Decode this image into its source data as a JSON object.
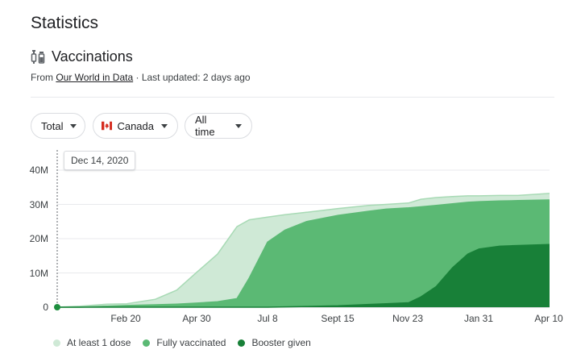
{
  "header": {
    "title": "Statistics",
    "section_title": "Vaccinations",
    "source_prefix": "From ",
    "source_link": "Our World in Data",
    "updated": " · Last updated: 2 days ago"
  },
  "filters": {
    "metric": "Total",
    "country": "Canada",
    "range": "All time"
  },
  "tooltip": {
    "date": "Dec 14, 2020"
  },
  "colors": {
    "at_least_one": "#cfe9d6",
    "fully": "#5bb974",
    "booster": "#188038",
    "accent": "#1e8e3e"
  },
  "chart_data": {
    "type": "area",
    "x": [
      "2020-12-14",
      "2021-01-05",
      "2021-02-01",
      "2021-02-20",
      "2021-03-20",
      "2021-04-10",
      "2021-04-30",
      "2021-05-20",
      "2021-06-08",
      "2021-06-20",
      "2021-07-08",
      "2021-07-25",
      "2021-08-15",
      "2021-09-15",
      "2021-10-15",
      "2021-11-01",
      "2021-11-23",
      "2021-12-05",
      "2021-12-20",
      "2022-01-05",
      "2022-01-20",
      "2022-01-31",
      "2022-02-20",
      "2022-03-10",
      "2022-04-10"
    ],
    "series": [
      {
        "name": "At least 1 dose",
        "color": "#cfe9d6",
        "values": [
          0,
          0.3,
          0.9,
          1.0,
          2.3,
          5.0,
          10.3,
          15.5,
          23.5,
          25.5,
          26.3,
          27.0,
          27.7,
          28.8,
          29.7,
          30.0,
          30.4,
          31.5,
          32.0,
          32.3,
          32.5,
          32.5,
          32.6,
          32.6,
          33.2
        ]
      },
      {
        "name": "Fully vaccinated",
        "color": "#5bb974",
        "values": [
          0,
          0,
          0.3,
          0.5,
          0.7,
          0.9,
          1.2,
          1.6,
          2.5,
          8.5,
          19.0,
          22.5,
          25.0,
          26.8,
          28.0,
          28.6,
          29.0,
          29.3,
          29.7,
          30.2,
          30.6,
          30.8,
          31.0,
          31.1,
          31.3
        ]
      },
      {
        "name": "Booster given",
        "color": "#188038",
        "values": [
          0,
          0,
          0,
          0,
          0,
          0,
          0,
          0,
          0,
          0,
          0,
          0.1,
          0.2,
          0.4,
          0.8,
          1.0,
          1.3,
          3.0,
          6.0,
          11.5,
          15.5,
          17.0,
          17.8,
          18.0,
          18.3
        ]
      }
    ],
    "x_ticks": [
      "Feb 20",
      "Apr 30",
      "Jul 8",
      "Sept 15",
      "Nov 23",
      "Jan 31",
      "Apr 10"
    ],
    "y_ticks": [
      "0",
      "10M",
      "20M",
      "30M",
      "40M"
    ],
    "ylim": [
      0,
      40
    ],
    "ylabel": "",
    "xlabel": "",
    "grid": true,
    "legend_position": "bottom"
  }
}
